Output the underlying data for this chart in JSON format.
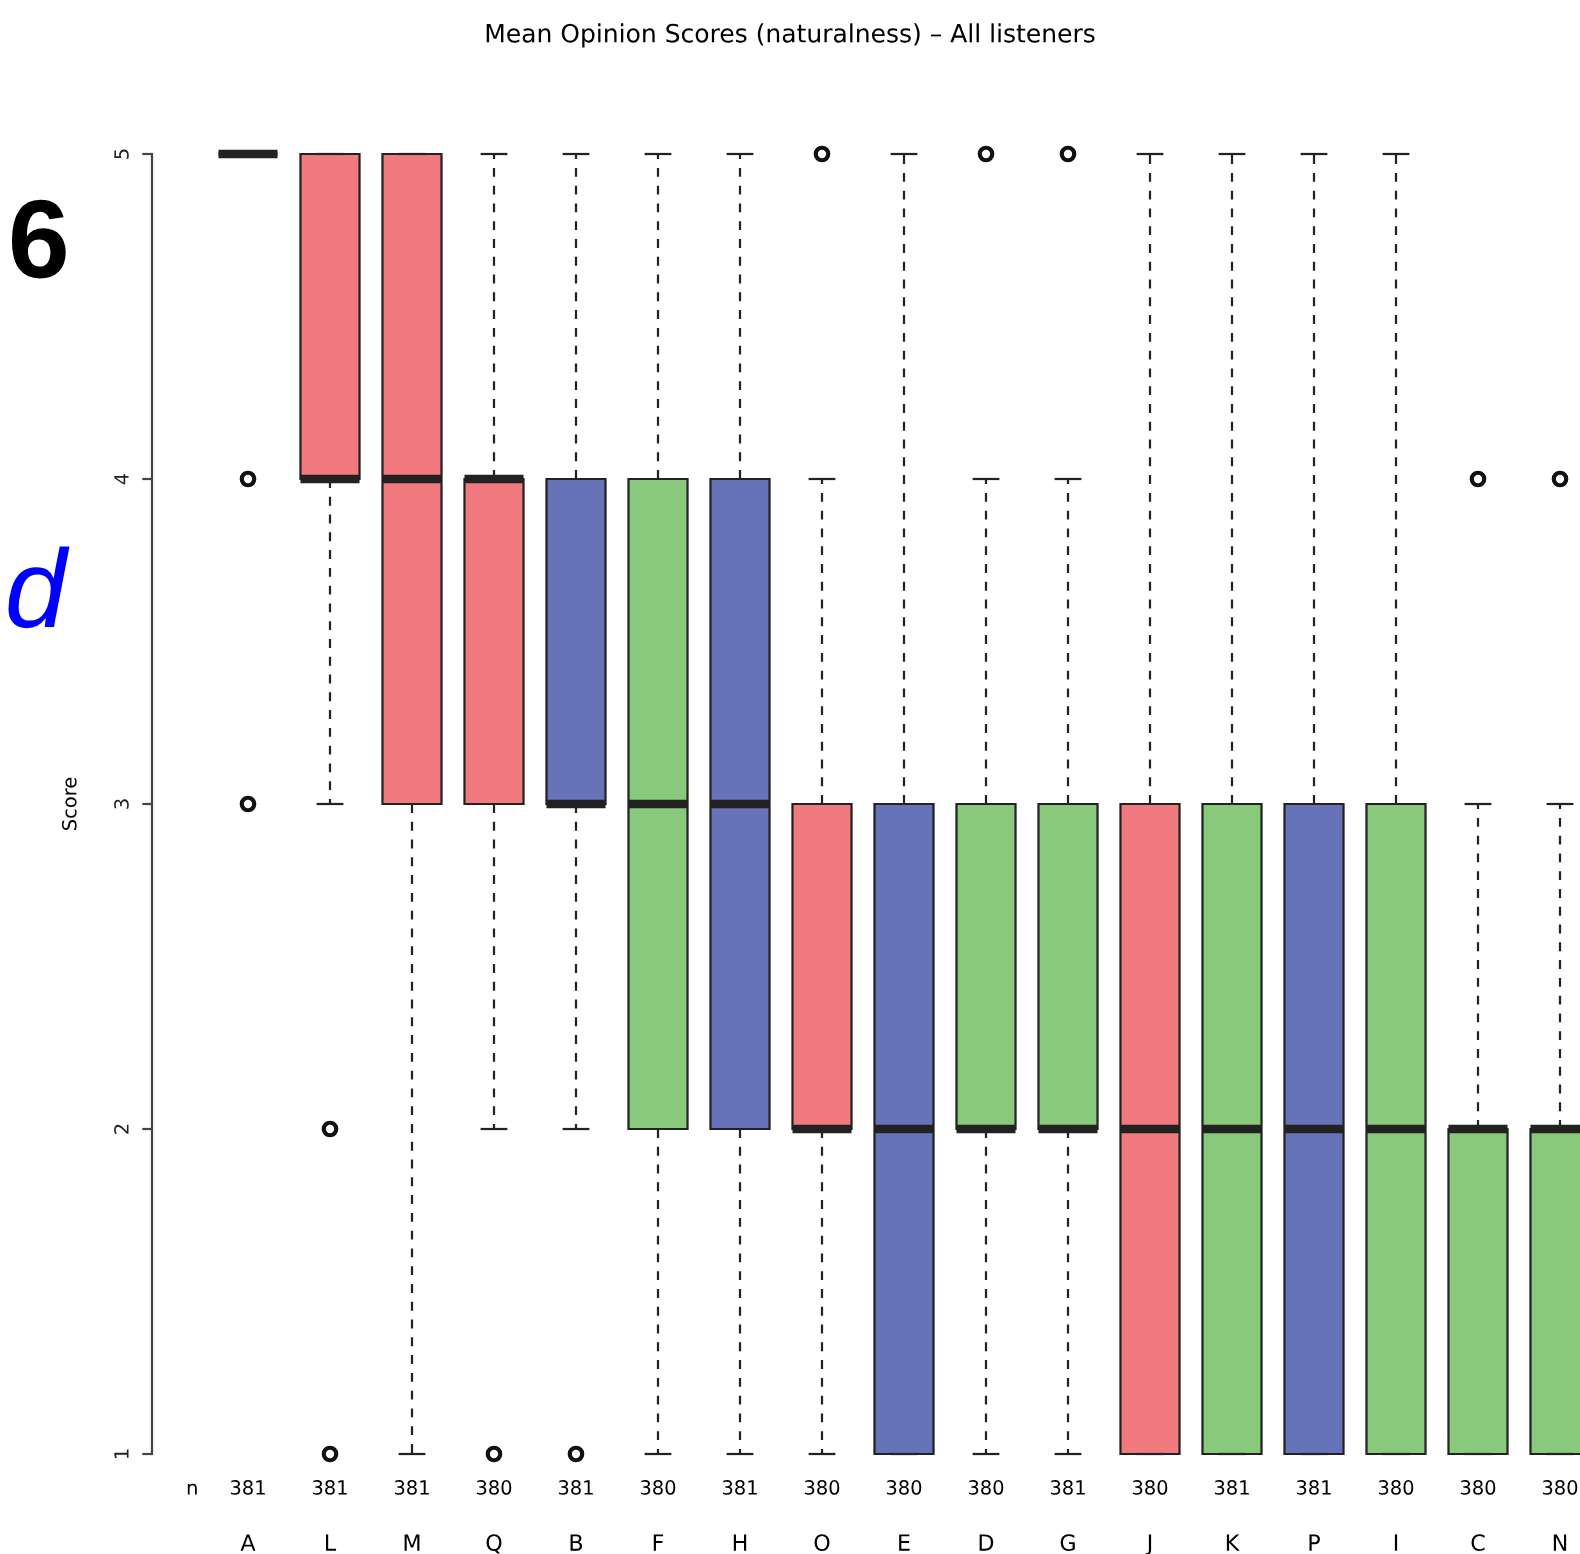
{
  "chart_data": {
    "type": "box",
    "title": "Mean Opinion Scores (naturalness) – All listeners",
    "ylabel": "Score",
    "categories": [
      "A",
      "L",
      "M",
      "Q",
      "B",
      "F",
      "H",
      "O",
      "E",
      "D",
      "G",
      "J",
      "K",
      "P",
      "I",
      "C",
      "N"
    ],
    "colors": [
      "#222222",
      "#f07a7d",
      "#f07a7d",
      "#f07a7d",
      "#6673b8",
      "#88c97b",
      "#6673b8",
      "#f07a7d",
      "#6673b8",
      "#88c97b",
      "#88c97b",
      "#f07a7d",
      "#88c97b",
      "#6673b8",
      "#88c97b",
      "#88c97b",
      "#88c97b"
    ],
    "boxes": [
      {
        "low": 5,
        "q1": 5,
        "median": 5,
        "q3": 5,
        "high": 5,
        "outliers": [
          4,
          3
        ]
      },
      {
        "low": 3,
        "q1": 4,
        "median": 4,
        "q3": 5,
        "high": 5,
        "outliers": [
          2,
          1
        ]
      },
      {
        "low": 1,
        "q1": 3,
        "median": 4,
        "q3": 5,
        "high": 5
      },
      {
        "low": 2,
        "q1": 3,
        "median": 4,
        "q3": 4,
        "high": 5,
        "outliers": [
          1
        ]
      },
      {
        "low": 2,
        "q1": 3,
        "median": 3,
        "q3": 4,
        "high": 5,
        "outliers": [
          1
        ]
      },
      {
        "low": 1,
        "q1": 2,
        "median": 3,
        "q3": 4,
        "high": 5
      },
      {
        "low": 1,
        "q1": 2,
        "median": 3,
        "q3": 4,
        "high": 5
      },
      {
        "low": 1,
        "q1": 2,
        "median": 2,
        "q3": 3,
        "high": 4,
        "outliers": [
          5
        ]
      },
      {
        "low": 1,
        "q1": 1,
        "median": 2,
        "q3": 3,
        "high": 5
      },
      {
        "low": 1,
        "q1": 2,
        "median": 2,
        "q3": 3,
        "high": 4,
        "outliers": [
          5
        ]
      },
      {
        "low": 1,
        "q1": 2,
        "median": 2,
        "q3": 3,
        "high": 4,
        "outliers": [
          5
        ]
      },
      {
        "low": 1,
        "q1": 1,
        "median": 2,
        "q3": 3,
        "high": 5
      },
      {
        "low": 1,
        "q1": 1,
        "median": 2,
        "q3": 3,
        "high": 5
      },
      {
        "low": 1,
        "q1": 1,
        "median": 2,
        "q3": 3,
        "high": 5
      },
      {
        "low": 1,
        "q1": 1,
        "median": 2,
        "q3": 3,
        "high": 5
      },
      {
        "low": 1,
        "q1": 1,
        "median": 2,
        "q3": 2,
        "high": 3,
        "outliers": [
          4
        ]
      },
      {
        "low": 1,
        "q1": 1,
        "median": 2,
        "q3": 2,
        "high": 3,
        "outliers": [
          4
        ]
      }
    ],
    "ylim": [
      1,
      5
    ],
    "yticks": [
      1,
      2,
      3,
      4,
      5
    ],
    "annotations": [
      "6",
      "d",
      "n",
      "381",
      "381",
      "381",
      "380",
      "381",
      "380",
      "381",
      "380",
      "380",
      "380",
      "381",
      "380",
      "381",
      "381",
      "380",
      "380",
      "380"
    ]
  }
}
